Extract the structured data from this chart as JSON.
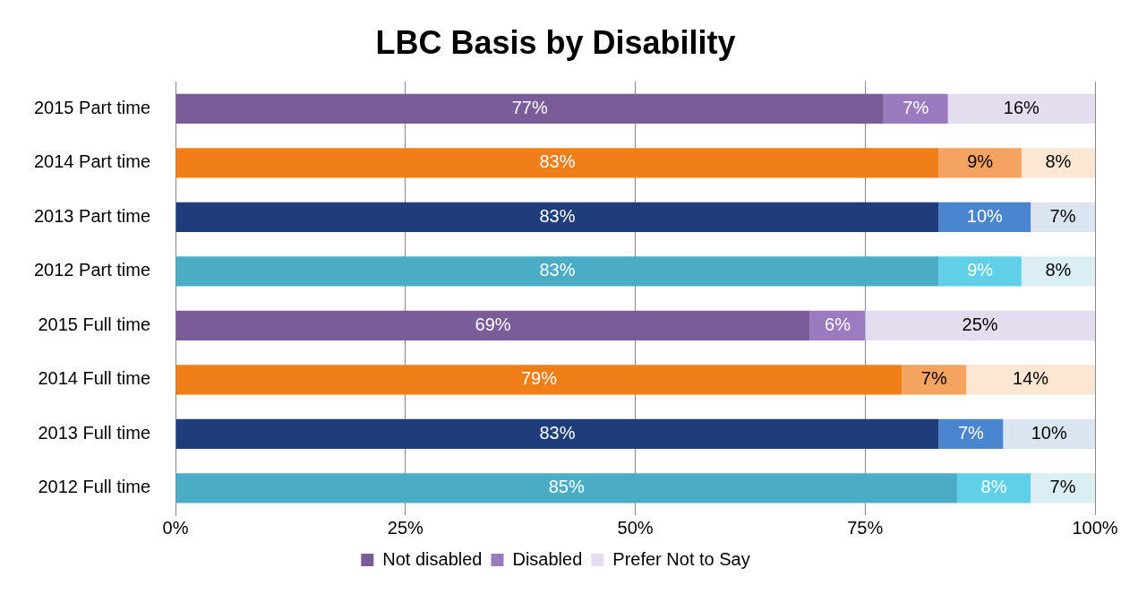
{
  "chart_data": {
    "type": "bar",
    "orientation": "horizontal",
    "stacked": true,
    "title": "LBC Basis by Disability",
    "categories": [
      "2015 Part time",
      "2014 Part time",
      "2013 Part time",
      "2012 Part time",
      "2015 Full time",
      "2014 Full time",
      "2013 Full time",
      "2012 Full time"
    ],
    "series": [
      {
        "name": "Not disabled",
        "colors": [
          "#7a5c99",
          "#f07f1a",
          "#1f3d7a",
          "#4bacc6",
          "#7a5c99",
          "#f07f1a",
          "#1f3d7a",
          "#4bacc6"
        ],
        "values": [
          77,
          83,
          83,
          83,
          69,
          79,
          83,
          85
        ],
        "value_labels": [
          "77%",
          "83%",
          "83%",
          "83%",
          "69%",
          "79%",
          "83%",
          "85%"
        ]
      },
      {
        "name": "Disabled",
        "colors": [
          "#9b7bc0",
          "#f4a360",
          "#4a86d0",
          "#5fd0e8",
          "#9b7bc0",
          "#f4a360",
          "#4a86d0",
          "#5fd0e8"
        ],
        "values": [
          7,
          9,
          10,
          9,
          6,
          7,
          7,
          8
        ],
        "value_labels": [
          "7%",
          "9%",
          "10%",
          "9%",
          "6%",
          "7%",
          "7%",
          "8%"
        ]
      },
      {
        "name": "Prefer Not to Say",
        "colors": [
          "#e4dcef",
          "#fde6d2",
          "#dbe5f1",
          "#daeef3",
          "#e4dcef",
          "#fde6d2",
          "#dbe5f1",
          "#daeef3"
        ],
        "values": [
          16,
          8,
          7,
          8,
          25,
          14,
          10,
          7
        ],
        "value_labels": [
          "16%",
          "8%",
          "7%",
          "8%",
          "25%",
          "14%",
          "10%",
          "7%"
        ]
      }
    ],
    "xlim": [
      0,
      100
    ],
    "xticks": [
      {
        "value": 0,
        "label": "0%"
      },
      {
        "value": 25,
        "label": "25%"
      },
      {
        "value": 50,
        "label": "50%"
      },
      {
        "value": 75,
        "label": "75%"
      },
      {
        "value": 100,
        "label": "100%"
      }
    ],
    "grid": "x",
    "legend": "bottom"
  }
}
